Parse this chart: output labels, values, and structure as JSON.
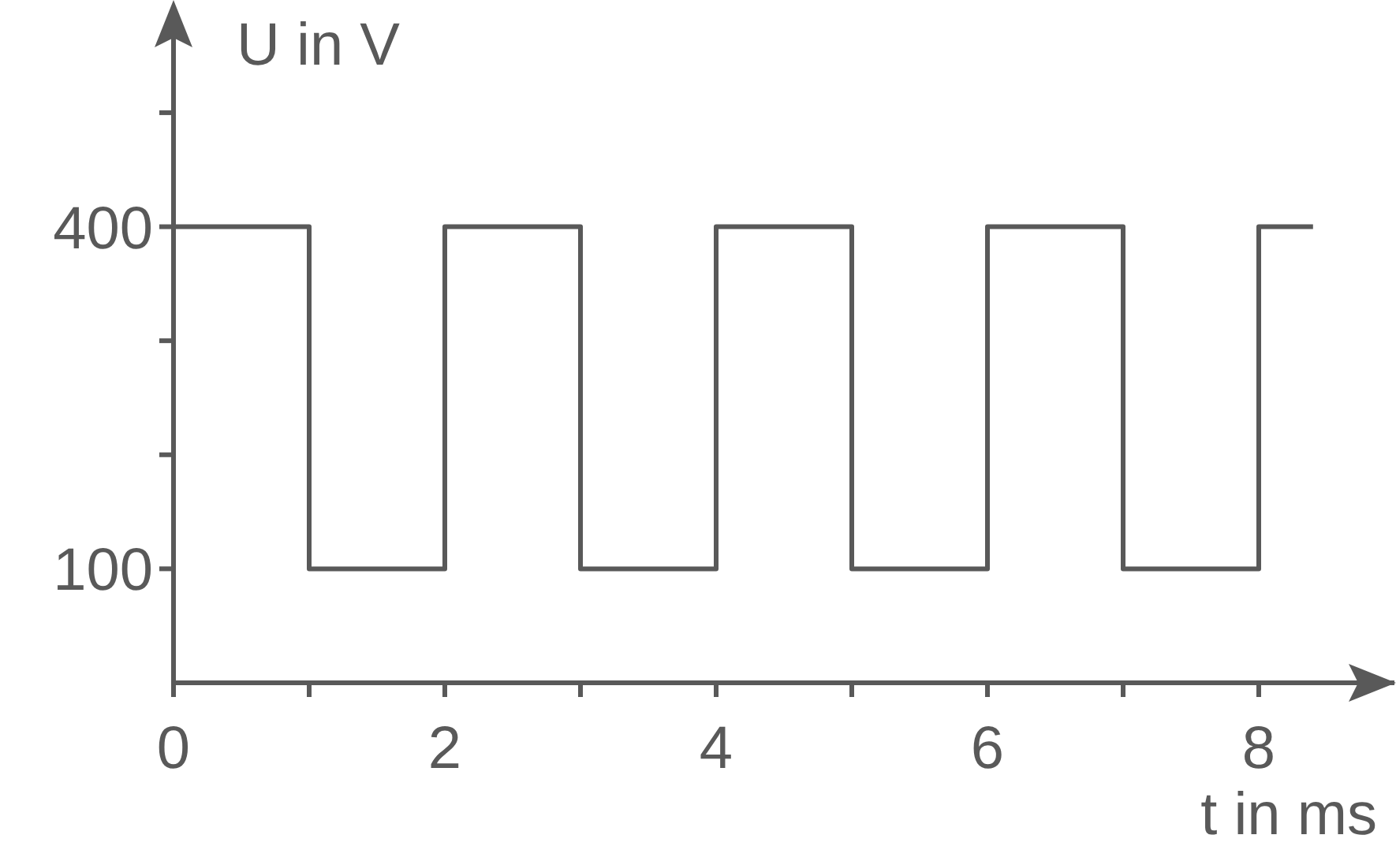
{
  "chart_data": {
    "type": "step",
    "xlabel": "t in ms",
    "ylabel": "U in V",
    "x": [
      0,
      1,
      2,
      3,
      4,
      5,
      6,
      7,
      8,
      8.4
    ],
    "series": [
      {
        "color": "#595959",
        "values": [
          400,
          100,
          400,
          100,
          400,
          100,
          400,
          100,
          400,
          400
        ]
      }
    ],
    "xlim": [
      0,
      9
    ],
    "xticks": [
      0,
      {
        "value": 1,
        "label": null
      },
      2,
      {
        "value": 3,
        "label": null
      },
      4,
      {
        "value": 5,
        "label": null
      },
      6,
      {
        "value": 7,
        "label": null
      },
      8
    ],
    "ylim": [
      0,
      585
    ],
    "yticks": [
      {
        "value": 100,
        "label": "100"
      },
      {
        "value": 200,
        "label": null
      },
      {
        "value": 300,
        "label": null
      },
      {
        "value": 400,
        "label": "400"
      },
      {
        "value": 500,
        "label": null
      }
    ],
    "marker": "none",
    "line_style": "solid"
  }
}
